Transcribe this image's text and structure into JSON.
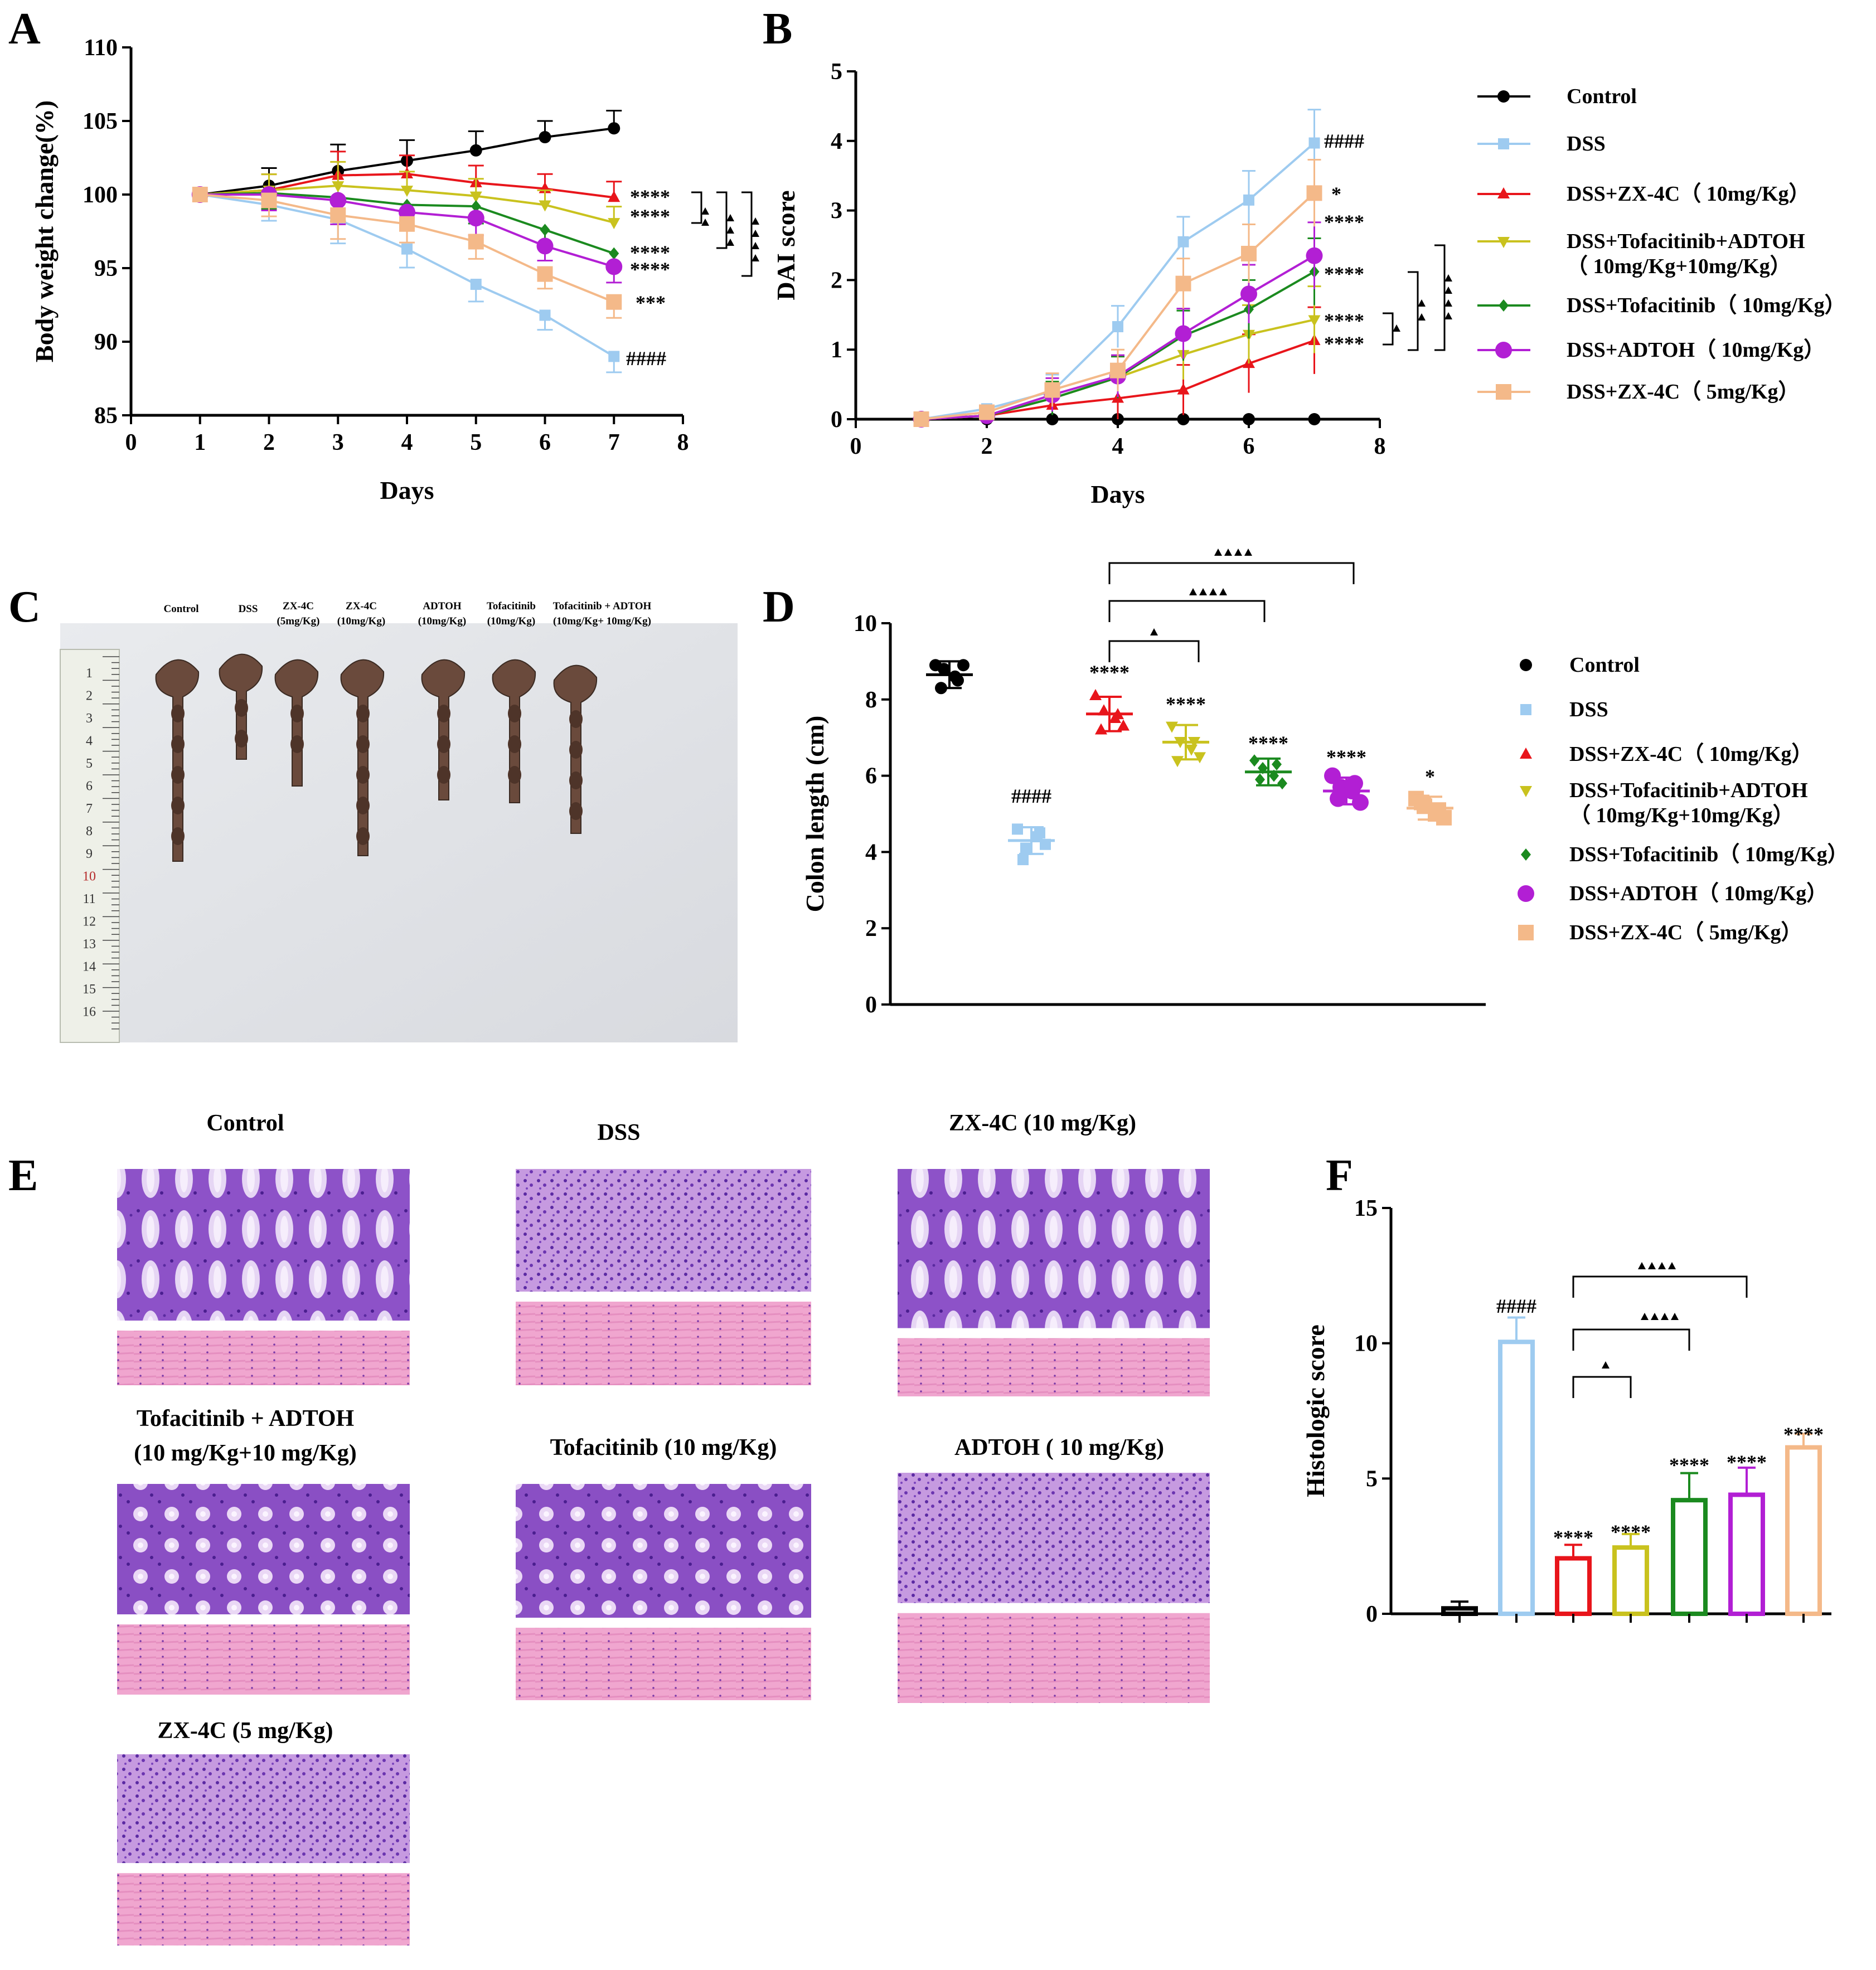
{
  "colors": {
    "Control": "#000000",
    "DSS": "#9ecbf0",
    "ZX10": "#e8151b",
    "TofaADTOH": "#c9c21e",
    "Tofa": "#1b8a1f",
    "ADTOH": "#b21fd4",
    "ZX5": "#f4b989"
  },
  "panels": {
    "A": "A",
    "B": "B",
    "C": "C",
    "D": "D",
    "E": "E",
    "F": "F"
  },
  "legend": [
    {
      "key": "Control",
      "label": "Control"
    },
    {
      "key": "DSS",
      "label": "DSS"
    },
    {
      "key": "ZX10",
      "label": "DSS+ZX-4C（ 10mg/Kg）"
    },
    {
      "key": "TofaADTOH",
      "label": "DSS+Tofacitinib+ADTOH"
    },
    {
      "key": "TofaADTOH2",
      "label": "（ 10mg/Kg+10mg/Kg）"
    },
    {
      "key": "Tofa",
      "label": "DSS+Tofacitinib（ 10mg/Kg）"
    },
    {
      "key": "ADTOH",
      "label": "DSS+ADTOH（ 10mg/Kg）"
    },
    {
      "key": "ZX5",
      "label": "DSS+ZX-4C（ 5mg/Kg）"
    }
  ],
  "photo_labels": [
    "Control",
    "DSS",
    "ZX-4C",
    "(5mg/Kg)",
    "ZX-4C",
    "(10mg/Kg)",
    "ADTOH",
    "(10mg/Kg)",
    "Tofacitinib",
    "(10mg/Kg)",
    "Tofacitinib + ADTOH",
    "(10mg/Kg+ 10mg/Kg)"
  ],
  "ruler_numbers": [
    "1",
    "2",
    "3",
    "4",
    "5",
    "6",
    "7",
    "8",
    "9",
    "10",
    "11",
    "12",
    "13",
    "14",
    "15",
    "16"
  ],
  "histo_titles": [
    "Control",
    "DSS",
    "ZX-4C (10 mg/Kg)",
    "Tofacitinib + ADTOH",
    "(10 mg/Kg+10 mg/Kg)",
    "Tofacitinib (10 mg/Kg)",
    "ADTOH ( 10 mg/Kg)",
    "ZX-4C (5 mg/Kg)"
  ],
  "chart_data": [
    {
      "panel": "A",
      "type": "line",
      "xlabel": "Days",
      "ylabel": "Body weight change(%)",
      "xlim": [
        0,
        8
      ],
      "ylim": [
        85,
        110
      ],
      "xticks": [
        "0",
        "1",
        "2",
        "3",
        "4",
        "5",
        "6",
        "7",
        "8"
      ],
      "yticks": [
        "85",
        "90",
        "95",
        "100",
        "105",
        "110"
      ],
      "x": [
        1,
        2,
        3,
        4,
        5,
        6,
        7
      ],
      "series": [
        {
          "name": "Control",
          "values": [
            100,
            100.6,
            101.6,
            102.3,
            103.0,
            103.9,
            104.5
          ]
        },
        {
          "name": "DSS",
          "values": [
            100,
            99.3,
            98.3,
            96.3,
            93.9,
            91.8,
            89.0
          ]
        },
        {
          "name": "DSS+ZX-4C（ 10mg/Kg）",
          "values": [
            100,
            100.3,
            101.3,
            101.4,
            100.8,
            100.4,
            99.8
          ]
        },
        {
          "name": "DSS+Tofacitinib+ADTOH（ 10mg/Kg+10mg/Kg）",
          "values": [
            100,
            100.3,
            100.6,
            100.3,
            99.9,
            99.3,
            98.1
          ]
        },
        {
          "name": "DSS+Tofacitinib（ 10mg/Kg）",
          "values": [
            100,
            100.1,
            99.8,
            99.3,
            99.2,
            97.6,
            96.0
          ]
        },
        {
          "name": "DSS+ADTOH（ 10mg/Kg）",
          "values": [
            100,
            100.0,
            99.6,
            98.8,
            98.4,
            96.5,
            95.1
          ]
        },
        {
          "name": "DSS+ZX-4C（ 5mg/Kg）",
          "values": [
            100,
            99.6,
            98.6,
            98.0,
            96.8,
            94.6,
            92.7
          ]
        }
      ],
      "annotations": [
        "****",
        "****",
        "****",
        "****",
        "***",
        "####"
      ]
    },
    {
      "panel": "B",
      "type": "line",
      "xlabel": "Days",
      "ylabel": "DAI score",
      "xlim": [
        0,
        8
      ],
      "ylim": [
        0,
        5
      ],
      "xticks": [
        "0",
        "2",
        "4",
        "6",
        "8"
      ],
      "yticks": [
        "0",
        "1",
        "2",
        "3",
        "4",
        "5"
      ],
      "x": [
        1,
        2,
        3,
        4,
        5,
        6,
        7
      ],
      "series": [
        {
          "name": "Control",
          "values": [
            0,
            0,
            0,
            0,
            0,
            0,
            0
          ]
        },
        {
          "name": "DSS",
          "values": [
            0,
            0.15,
            0.4,
            1.33,
            2.55,
            3.15,
            3.97
          ]
        },
        {
          "name": "DSS+ZX-4C（ 10mg/Kg）",
          "values": [
            0,
            0.05,
            0.2,
            0.3,
            0.42,
            0.8,
            1.13
          ]
        },
        {
          "name": "DSS+Tofacitinib+ADTOH（ 10mg/Kg+10mg/Kg）",
          "values": [
            0,
            0.05,
            0.3,
            0.6,
            0.93,
            1.22,
            1.43
          ]
        },
        {
          "name": "DSS+Tofacitinib（ 10mg/Kg）",
          "values": [
            0,
            0.05,
            0.3,
            0.6,
            1.2,
            1.58,
            2.12
          ]
        },
        {
          "name": "DSS+ADTOH（ 10mg/Kg）",
          "values": [
            0,
            0.05,
            0.35,
            0.62,
            1.23,
            1.8,
            2.35
          ]
        },
        {
          "name": "DSS+ZX-4C（ 5mg/Kg）",
          "values": [
            0,
            0.1,
            0.42,
            0.7,
            1.95,
            2.38,
            3.25
          ]
        }
      ],
      "annotations": [
        "####",
        "*",
        "****",
        "****",
        "****",
        "****"
      ]
    },
    {
      "panel": "D",
      "type": "scatter",
      "ylabel": "Colon length (cm)",
      "ylim": [
        0,
        10
      ],
      "yticks": [
        "0",
        "2",
        "4",
        "6",
        "8",
        "10"
      ],
      "groups": [
        {
          "name": "Control",
          "mean": 8.65,
          "sd": 0.35,
          "points": [
            8.9,
            8.8,
            8.6,
            8.9,
            8.3,
            8.5
          ]
        },
        {
          "name": "DSS",
          "mean": 4.3,
          "sd": 0.35,
          "points": [
            4.6,
            4.1,
            4.4,
            4.2,
            3.8,
            4.5
          ]
        },
        {
          "name": "DSS+ZX-4C（ 10mg/Kg）",
          "mean": 7.62,
          "sd": 0.45,
          "points": [
            8.1,
            7.7,
            7.5,
            7.3,
            7.2,
            7.6
          ]
        },
        {
          "name": "DSS+Tofacitinib+ADTOH（ 10mg/Kg+10mg/Kg）",
          "mean": 6.88,
          "sd": 0.45,
          "points": [
            7.3,
            6.9,
            6.7,
            6.5,
            6.4,
            6.9
          ]
        },
        {
          "name": "DSS+Tofacitinib（ 10mg/Kg）",
          "mean": 6.1,
          "sd": 0.35,
          "points": [
            6.4,
            6.2,
            6.0,
            5.8,
            5.9,
            6.3
          ]
        },
        {
          "name": "DSS+ADTOH（ 10mg/Kg）",
          "mean": 5.6,
          "sd": 0.35,
          "points": [
            6.0,
            5.7,
            5.6,
            5.3,
            5.4,
            5.8
          ]
        },
        {
          "name": "DSS+ZX-4C（ 5mg/Kg）",
          "mean": 5.15,
          "sd": 0.3,
          "points": [
            5.4,
            5.2,
            5.0,
            4.9,
            5.3,
            5.1
          ]
        }
      ],
      "annotations": [
        "####",
        "****",
        "****",
        "****",
        "****",
        "*"
      ]
    },
    {
      "panel": "F",
      "type": "bar",
      "ylabel": "Histologic score",
      "ylim": [
        0,
        15
      ],
      "yticks": [
        "0",
        "5",
        "10",
        "15"
      ],
      "categories": [
        "Control",
        "DSS",
        "DSS+ZX-4C（ 10mg/Kg）",
        "DSS+Tofacitinib+ADTOH（ 10mg/Kg+10mg/Kg）",
        "DSS+Tofacitinib（ 10mg/Kg）",
        "DSS+ADTOH（ 10mg/Kg）",
        "DSS+ZX-4C（ 5mg/Kg）"
      ],
      "values": [
        0.2,
        10.05,
        2.05,
        2.45,
        4.2,
        4.4,
        6.15
      ],
      "errors": [
        0.25,
        0.9,
        0.5,
        0.5,
        1.0,
        1.0,
        0.5
      ],
      "annotations": [
        "####",
        "****",
        "****",
        "****",
        "****",
        "****"
      ]
    }
  ]
}
